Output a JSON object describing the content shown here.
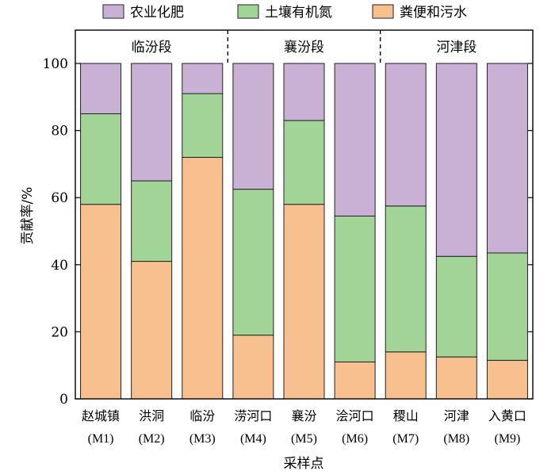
{
  "chart_data": {
    "type": "bar",
    "stacked": true,
    "categories": [
      "赵城镇",
      "洪洞",
      "临汾",
      "涝河口",
      "襄汾",
      "浍河口",
      "稷山",
      "河津",
      "入黄口"
    ],
    "codes": [
      "(M1)",
      "(M2)",
      "(M3)",
      "(M4)",
      "(M5)",
      "(M6)",
      "(M7)",
      "(M8)",
      "(M9)"
    ],
    "series": [
      {
        "name": "粪便和污水",
        "color": "#F8C08F",
        "values": [
          58,
          41,
          72,
          19,
          58,
          11,
          14,
          12.5,
          11.5
        ]
      },
      {
        "name": "土壤有机氮",
        "color": "#A3D497",
        "values": [
          27,
          24,
          19,
          43.5,
          25,
          43.5,
          43.5,
          30,
          32
        ]
      },
      {
        "name": "农业化肥",
        "color": "#C9B1D5",
        "values": [
          15,
          35,
          9,
          37.5,
          17,
          45.5,
          42.5,
          57.5,
          56.5
        ]
      }
    ],
    "segments": [
      {
        "label": "临汾段",
        "start": 0,
        "end": 2
      },
      {
        "label": "襄汾段",
        "start": 3,
        "end": 5
      },
      {
        "label": "河津段",
        "start": 6,
        "end": 8
      }
    ],
    "legend_order": [
      2,
      1,
      0
    ],
    "yticks": [
      0,
      20,
      40,
      60,
      80,
      100
    ],
    "ylim": [
      0,
      100
    ],
    "xlabel": "采样点",
    "ylabel": "贡献率/%",
    "legend_position": "top",
    "grid": false
  }
}
